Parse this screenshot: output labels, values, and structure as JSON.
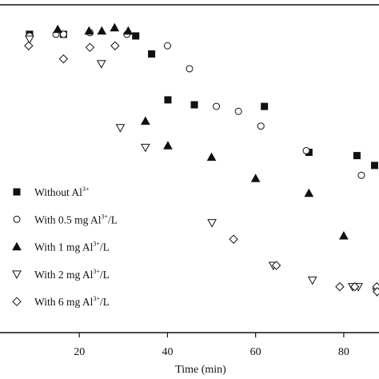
{
  "chart_data": {
    "type": "scatter",
    "title": "",
    "xlabel": "Time (min)",
    "ylabel": "",
    "xlim": [
      2,
      88
    ],
    "ylim": [
      0,
      1
    ],
    "x_ticks": [
      20,
      40,
      60,
      80
    ],
    "x_tick_labels": [
      "20",
      "40",
      "60",
      "80"
    ],
    "grid": false,
    "legend_position": "bottom-left",
    "series": [
      {
        "name": "Without  Al3+",
        "label_main": "Without  Al",
        "label_sup": "3+",
        "label_tail": "",
        "marker": "filled-square",
        "points": [
          [
            8.7,
            0.91
          ],
          [
            16.4,
            0.91
          ],
          [
            32.8,
            0.905
          ],
          [
            36.4,
            0.85
          ],
          [
            40.1,
            0.71
          ],
          [
            46.1,
            0.695
          ],
          [
            62.0,
            0.69
          ],
          [
            72.1,
            0.55
          ],
          [
            83.0,
            0.54
          ],
          [
            87.0,
            0.51
          ]
        ]
      },
      {
        "name": "With 0.5 mg Al3+/L",
        "label_main": "With 0.5 mg Al",
        "label_sup": "3+",
        "label_tail": "/L",
        "marker": "open-circle",
        "points": [
          [
            8.7,
            0.905
          ],
          [
            14.7,
            0.91
          ],
          [
            16.4,
            0.91
          ],
          [
            22.4,
            0.915
          ],
          [
            30.8,
            0.91
          ],
          [
            40.0,
            0.875
          ],
          [
            45.0,
            0.805
          ],
          [
            51.1,
            0.69
          ],
          [
            56.1,
            0.675
          ],
          [
            61.2,
            0.63
          ],
          [
            71.5,
            0.555
          ],
          [
            84.0,
            0.48
          ]
        ]
      },
      {
        "name": "With 1 mg Al3+/L",
        "label_main": "With 1 mg Al",
        "label_sup": "3+",
        "label_tail": "/L",
        "marker": "filled-triangle-up",
        "points": [
          [
            15.1,
            0.925
          ],
          [
            22.2,
            0.92
          ],
          [
            25.1,
            0.92
          ],
          [
            28.0,
            0.93
          ],
          [
            31.1,
            0.92
          ],
          [
            35.0,
            0.645
          ],
          [
            40.1,
            0.57
          ],
          [
            50.0,
            0.535
          ],
          [
            60.0,
            0.47
          ],
          [
            72.1,
            0.425
          ],
          [
            80.0,
            0.295
          ]
        ]
      },
      {
        "name": "With 2 mg Al3+/L",
        "label_main": "With 2 mg Al",
        "label_sup": "3+",
        "label_tail": "/L",
        "marker": "open-triangle-down",
        "points": [
          [
            8.7,
            0.895
          ],
          [
            25.0,
            0.82
          ],
          [
            29.3,
            0.625
          ],
          [
            35.0,
            0.565
          ],
          [
            50.1,
            0.335
          ],
          [
            64.0,
            0.205
          ],
          [
            72.9,
            0.16
          ],
          [
            82.0,
            0.14
          ],
          [
            83.3,
            0.14
          ],
          [
            87.5,
            0.125
          ]
        ]
      },
      {
        "name": "With 6 mg Al3+/L",
        "label_main": "With 6 mg Al",
        "label_sup": "3+",
        "label_tail": "/L",
        "marker": "open-diamond",
        "points": [
          [
            8.5,
            0.875
          ],
          [
            16.4,
            0.835
          ],
          [
            22.4,
            0.87
          ],
          [
            28.1,
            0.875
          ],
          [
            55.0,
            0.285
          ],
          [
            64.7,
            0.205
          ],
          [
            79.1,
            0.14
          ],
          [
            82.5,
            0.14
          ],
          [
            87.5,
            0.14
          ],
          [
            87.6,
            0.125
          ]
        ]
      }
    ]
  }
}
